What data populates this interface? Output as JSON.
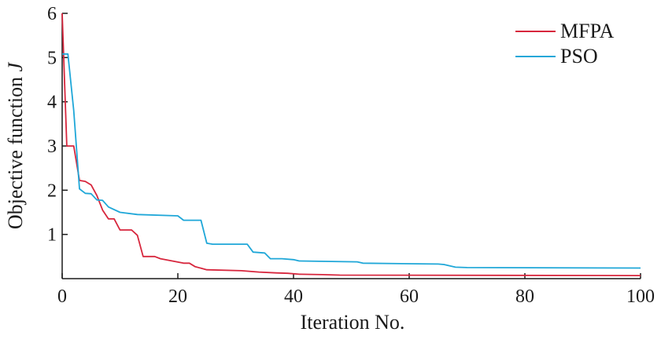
{
  "chart_data": {
    "type": "line",
    "xlabel": "Iteration No.",
    "ylabel": "Objective function",
    "ylabel_var": "J",
    "xlim": [
      0,
      100
    ],
    "ylim": [
      0,
      6
    ],
    "xticks": [
      0,
      20,
      40,
      60,
      80,
      100
    ],
    "yticks": [
      1,
      2,
      3,
      4,
      5,
      6
    ],
    "grid": false,
    "legend_position": "top-right",
    "series": [
      {
        "name": "MFPA",
        "color": "#d7263d",
        "points": [
          [
            0,
            6.0
          ],
          [
            0.8,
            3.0
          ],
          [
            2,
            3.0
          ],
          [
            3,
            2.22
          ],
          [
            4,
            2.2
          ],
          [
            5,
            2.12
          ],
          [
            6,
            1.88
          ],
          [
            7,
            1.55
          ],
          [
            8,
            1.35
          ],
          [
            9,
            1.35
          ],
          [
            10,
            1.1
          ],
          [
            12,
            1.1
          ],
          [
            13,
            0.98
          ],
          [
            14,
            0.5
          ],
          [
            16,
            0.5
          ],
          [
            17,
            0.45
          ],
          [
            21,
            0.35
          ],
          [
            22,
            0.35
          ],
          [
            23,
            0.27
          ],
          [
            25,
            0.2
          ],
          [
            31,
            0.18
          ],
          [
            34,
            0.15
          ],
          [
            37,
            0.13
          ],
          [
            39,
            0.12
          ],
          [
            41,
            0.1
          ],
          [
            45,
            0.09
          ],
          [
            48,
            0.08
          ],
          [
            100,
            0.07
          ]
        ]
      },
      {
        "name": "PSO",
        "color": "#1fa7d8",
        "points": [
          [
            0,
            5.08
          ],
          [
            1,
            5.08
          ],
          [
            2,
            3.8
          ],
          [
            3,
            2.03
          ],
          [
            4,
            1.93
          ],
          [
            5,
            1.92
          ],
          [
            6,
            1.78
          ],
          [
            7,
            1.77
          ],
          [
            8,
            1.62
          ],
          [
            10,
            1.5
          ],
          [
            13,
            1.45
          ],
          [
            20,
            1.42
          ],
          [
            21,
            1.32
          ],
          [
            24,
            1.32
          ],
          [
            25,
            0.8
          ],
          [
            26,
            0.78
          ],
          [
            32,
            0.78
          ],
          [
            33,
            0.6
          ],
          [
            35,
            0.58
          ],
          [
            36,
            0.45
          ],
          [
            38,
            0.45
          ],
          [
            40,
            0.43
          ],
          [
            41,
            0.4
          ],
          [
            51,
            0.38
          ],
          [
            52,
            0.35
          ],
          [
            65,
            0.33
          ],
          [
            66,
            0.32
          ],
          [
            68,
            0.26
          ],
          [
            70,
            0.25
          ],
          [
            100,
            0.24
          ]
        ]
      }
    ]
  }
}
